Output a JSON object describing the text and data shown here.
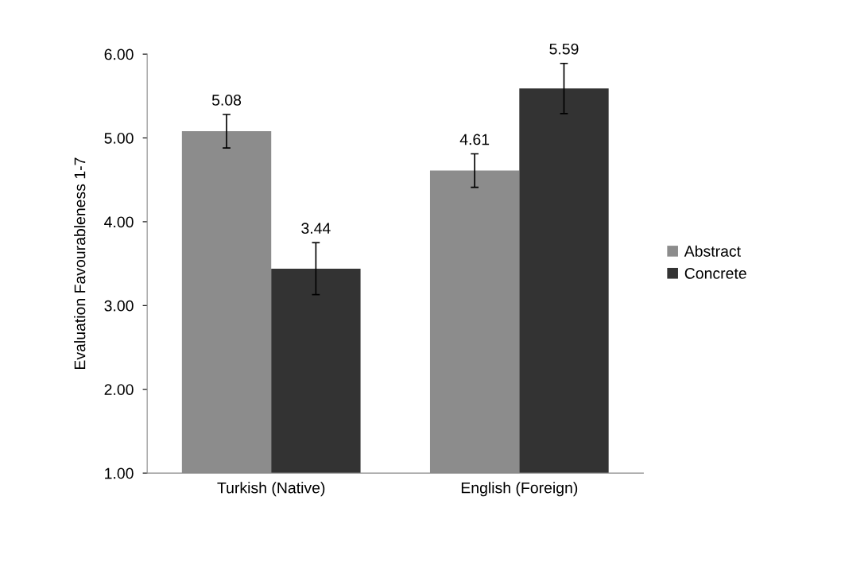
{
  "chart_data": {
    "type": "bar",
    "ylabel": "Evaluation Favourableness 1-7",
    "categories": [
      "Turkish (Native)",
      "English (Foreign)"
    ],
    "series": [
      {
        "name": "Abstract",
        "color": "#8c8c8c",
        "values": [
          5.08,
          4.61
        ],
        "errors": [
          0.2,
          0.2
        ]
      },
      {
        "name": "Concrete",
        "color": "#333333",
        "values": [
          3.44,
          5.59
        ],
        "errors": [
          0.31,
          0.3
        ]
      }
    ],
    "ylim": [
      1,
      6
    ],
    "yticks": [
      {
        "value": 1,
        "label": "1.00"
      },
      {
        "value": 2,
        "label": "2.00"
      },
      {
        "value": 3,
        "label": "3.00"
      },
      {
        "value": 4,
        "label": "4.00"
      },
      {
        "value": 5,
        "label": "5.00"
      },
      {
        "value": 6,
        "label": "6.00"
      }
    ],
    "data_labels": true,
    "grid": false,
    "legend": "right"
  }
}
